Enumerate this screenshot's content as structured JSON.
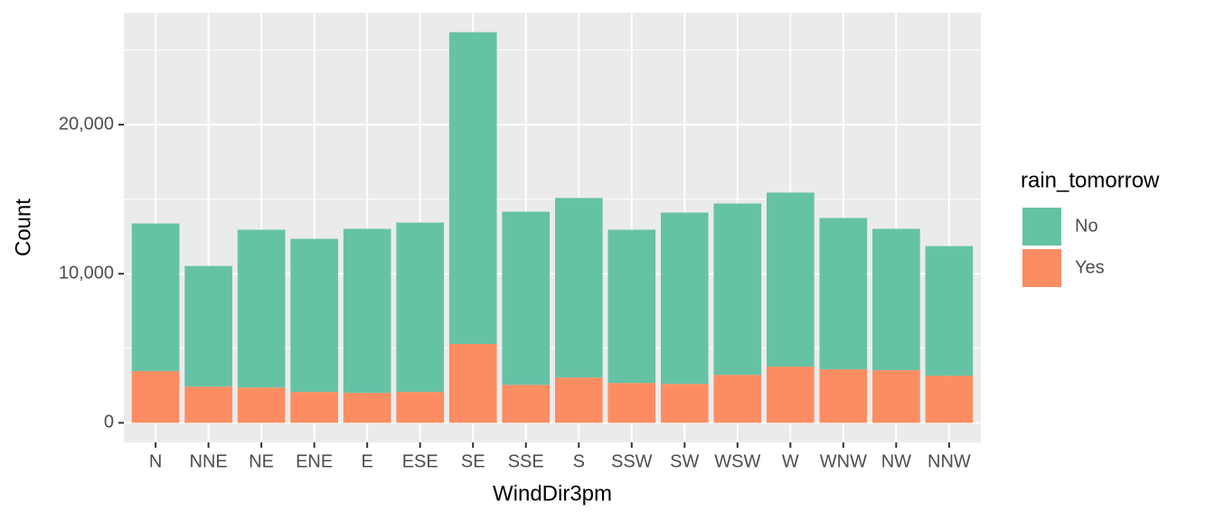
{
  "chart_data": {
    "type": "stacked-bar",
    "x_label": "WindDir3pm",
    "y_label": "Count",
    "categories": [
      "N",
      "NNE",
      "NE",
      "ENE",
      "E",
      "ESE",
      "SE",
      "SSE",
      "S",
      "SSW",
      "SW",
      "WSW",
      "W",
      "WNW",
      "NW",
      "NNW"
    ],
    "series": [
      {
        "name": "No",
        "color": "#66c2a5",
        "values": [
          9900,
          8090,
          10580,
          10270,
          11000,
          11360,
          20910,
          11610,
          12040,
          10280,
          11490,
          11490,
          11670,
          10150,
          9480,
          8690
        ]
      },
      {
        "name": "Yes",
        "color": "#fc8d62",
        "values": [
          3470,
          2430,
          2370,
          2070,
          2010,
          2070,
          5290,
          2550,
          3040,
          2670,
          2610,
          3220,
          3770,
          3590,
          3530,
          3160
        ]
      }
    ],
    "stack_order": [
      "Yes",
      "No"
    ],
    "legend_title": "rain_tomorrow",
    "legend_position": "right",
    "ylim": [
      -1310,
      27510
    ],
    "yticks": [
      0,
      {
        "value": 10000,
        "label": "10,000"
      },
      {
        "value": 20000,
        "label": "20,000"
      }
    ],
    "minor_yticks": [
      5000,
      15000,
      25000
    ],
    "grid": true
  }
}
